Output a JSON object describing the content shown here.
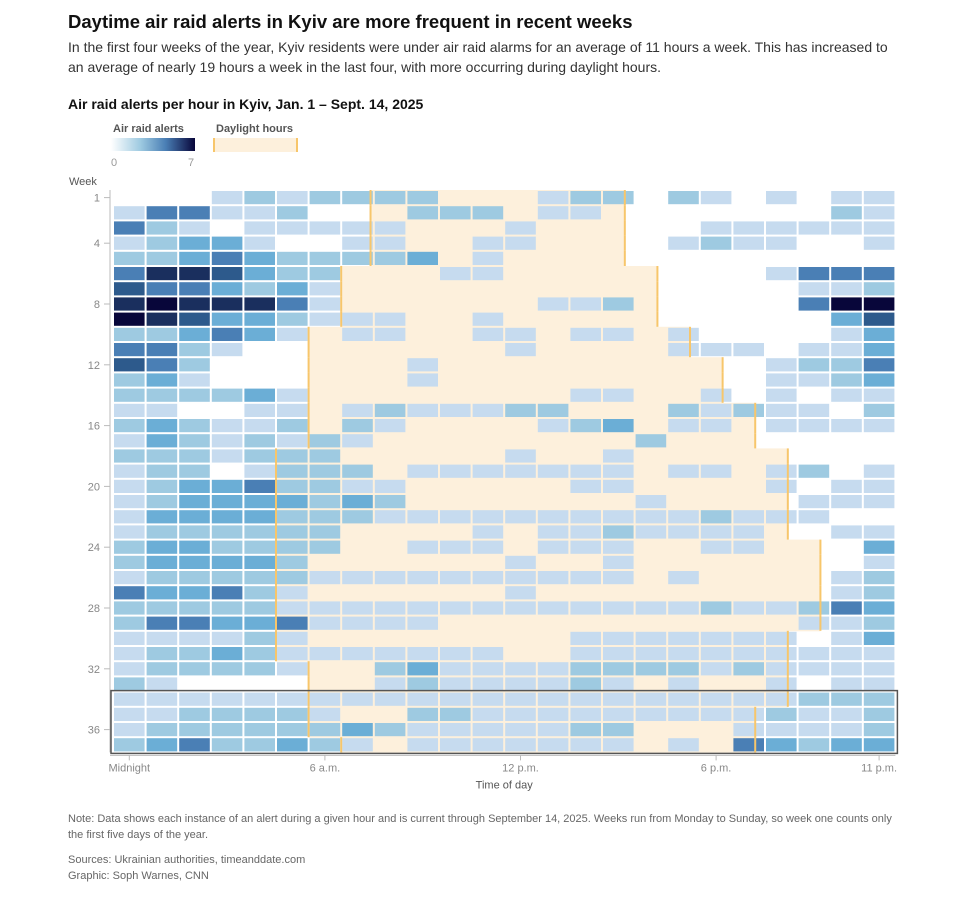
{
  "header": {
    "title": "Daytime air raid alerts in Kyiv are more frequent in recent weeks",
    "dek": "In the first four weeks of the year, Kyiv residents were under air raid alarms for an average of 11 hours a week. This has increased to an average of nearly 19 hours a week in the last four, with more occurring during daylight hours."
  },
  "legend": {
    "alerts_label": "Air raid alerts",
    "daylight_label": "Daylight hours",
    "min_label": "0",
    "max_label": "7"
  },
  "footer": {
    "note": "Note: Data shows each instance of an alert during a given hour and is current through September 14, 2025. Weeks run from Monday to Sunday, so week one counts only the first five days of the year.",
    "sources": "Sources: Ukrainian authorities, timeanddate.com",
    "credit": "Graphic: Soph Warnes, CNN"
  },
  "colors": {
    "scale": [
      "#ffffff",
      "#c6dbef",
      "#9ecae1",
      "#6baed6",
      "#4a7fb5",
      "#2d5a8c",
      "#1a2f5e",
      "#08063a"
    ],
    "daylight_fill": "#fdf0dc",
    "daylight_line": "#f7c66b",
    "highlight_border": "#555555"
  },
  "chart_data": {
    "type": "heatmap",
    "title": "Air raid alerts per hour in Kyiv, Jan. 1 – Sept. 14, 2025",
    "xlabel": "Time of day",
    "ylabel": "Week",
    "x_ticks": [
      {
        "hour": 0,
        "label": "Midnight"
      },
      {
        "hour": 6,
        "label": "6 a.m."
      },
      {
        "hour": 12,
        "label": "12 p.m."
      },
      {
        "hour": 18,
        "label": "6 p.m."
      },
      {
        "hour": 23,
        "label": "11 p.m."
      }
    ],
    "y_ticks": [
      1,
      4,
      8,
      12,
      16,
      20,
      24,
      28,
      32,
      36
    ],
    "hours": [
      0,
      23
    ],
    "weeks": [
      1,
      37
    ],
    "value_range": [
      0,
      7
    ],
    "highlight_weeks": [
      34,
      37
    ],
    "sunrise_by_week": [
      7.9,
      7.9,
      7.9,
      7.9,
      7.9,
      7.0,
      7.0,
      7.0,
      7.0,
      6.0,
      6.0,
      6.0,
      6.0,
      6.0,
      6.0,
      6.0,
      6.0,
      5.0,
      5.0,
      5.0,
      5.0,
      5.0,
      5.0,
      5.0,
      5.0,
      5.0,
      5.0,
      5.0,
      5.0,
      5.0,
      5.0,
      6.0,
      6.0,
      6.0,
      6.0,
      6.0,
      7.0
    ],
    "sunset_by_week": [
      15.7,
      15.7,
      15.7,
      15.7,
      15.7,
      16.7,
      16.7,
      16.7,
      16.7,
      17.7,
      17.7,
      18.7,
      18.7,
      18.7,
      19.7,
      19.7,
      19.7,
      20.7,
      20.7,
      20.7,
      20.7,
      20.7,
      20.7,
      21.7,
      21.7,
      21.7,
      21.7,
      21.7,
      21.7,
      20.7,
      20.7,
      20.7,
      20.7,
      20.7,
      19.7,
      19.7,
      19.7
    ],
    "values": [
      [
        0,
        0,
        0,
        1,
        2,
        1,
        2,
        2,
        2,
        2,
        0,
        0,
        0,
        1,
        2,
        2,
        0,
        2,
        1,
        0,
        1,
        0,
        1,
        1
      ],
      [
        1,
        4,
        4,
        1,
        1,
        2,
        0,
        0,
        0,
        2,
        2,
        2,
        0,
        1,
        1,
        0,
        0,
        0,
        0,
        0,
        0,
        0,
        2,
        1
      ],
      [
        4,
        2,
        1,
        0,
        1,
        1,
        1,
        1,
        1,
        0,
        0,
        0,
        1,
        0,
        0,
        0,
        0,
        0,
        1,
        1,
        1,
        1,
        1,
        1
      ],
      [
        1,
        2,
        3,
        3,
        1,
        0,
        0,
        1,
        1,
        0,
        0,
        1,
        1,
        0,
        0,
        0,
        0,
        1,
        2,
        1,
        1,
        0,
        0,
        1
      ],
      [
        2,
        2,
        3,
        4,
        3,
        2,
        2,
        2,
        2,
        3,
        0,
        1,
        0,
        0,
        0,
        0,
        0,
        0,
        0,
        0,
        0,
        0,
        0,
        0
      ],
      [
        4,
        6,
        6,
        5,
        3,
        2,
        2,
        0,
        0,
        0,
        1,
        1,
        0,
        0,
        0,
        0,
        0,
        0,
        0,
        0,
        1,
        4,
        4,
        4
      ],
      [
        5,
        4,
        4,
        3,
        2,
        3,
        1,
        0,
        0,
        0,
        0,
        0,
        0,
        0,
        0,
        0,
        0,
        0,
        0,
        0,
        0,
        1,
        1,
        2
      ],
      [
        6,
        7,
        6,
        6,
        6,
        4,
        1,
        0,
        0,
        0,
        0,
        0,
        0,
        1,
        1,
        2,
        0,
        0,
        0,
        0,
        0,
        4,
        7,
        7
      ],
      [
        7,
        6,
        5,
        3,
        3,
        2,
        1,
        1,
        1,
        0,
        0,
        1,
        0,
        0,
        0,
        0,
        0,
        0,
        0,
        0,
        0,
        0,
        3,
        5
      ],
      [
        2,
        2,
        3,
        4,
        3,
        1,
        0,
        1,
        1,
        0,
        0,
        1,
        1,
        0,
        1,
        1,
        0,
        1,
        0,
        0,
        0,
        0,
        1,
        3
      ],
      [
        4,
        4,
        2,
        1,
        0,
        0,
        0,
        0,
        0,
        0,
        0,
        0,
        1,
        0,
        0,
        0,
        0,
        1,
        1,
        1,
        0,
        1,
        1,
        3
      ],
      [
        5,
        4,
        2,
        0,
        0,
        0,
        0,
        0,
        0,
        1,
        0,
        0,
        0,
        0,
        0,
        0,
        0,
        0,
        0,
        0,
        1,
        2,
        2,
        4
      ],
      [
        2,
        3,
        1,
        0,
        0,
        0,
        0,
        0,
        0,
        1,
        0,
        0,
        0,
        0,
        0,
        0,
        0,
        0,
        0,
        0,
        1,
        1,
        2,
        3
      ],
      [
        2,
        2,
        2,
        2,
        3,
        1,
        0,
        0,
        0,
        0,
        0,
        0,
        0,
        0,
        1,
        1,
        0,
        0,
        1,
        0,
        1,
        0,
        1,
        1
      ],
      [
        1,
        1,
        0,
        0,
        1,
        1,
        0,
        1,
        2,
        1,
        1,
        1,
        2,
        2,
        0,
        0,
        0,
        2,
        1,
        2,
        1,
        1,
        0,
        2
      ],
      [
        2,
        3,
        2,
        1,
        1,
        2,
        0,
        2,
        1,
        0,
        0,
        0,
        0,
        1,
        2,
        3,
        0,
        1,
        1,
        0,
        1,
        1,
        1,
        1
      ],
      [
        1,
        3,
        2,
        1,
        2,
        1,
        2,
        1,
        0,
        0,
        0,
        0,
        0,
        0,
        0,
        0,
        2,
        0,
        0,
        0,
        0,
        0,
        0,
        0
      ],
      [
        2,
        2,
        2,
        1,
        2,
        2,
        2,
        0,
        0,
        0,
        0,
        0,
        1,
        0,
        0,
        1,
        0,
        0,
        0,
        0,
        0,
        0,
        0,
        0
      ],
      [
        1,
        2,
        2,
        0,
        1,
        2,
        2,
        2,
        0,
        1,
        1,
        1,
        1,
        1,
        1,
        1,
        0,
        1,
        1,
        0,
        1,
        2,
        0,
        1
      ],
      [
        1,
        2,
        3,
        3,
        4,
        2,
        2,
        1,
        1,
        0,
        0,
        0,
        0,
        0,
        1,
        1,
        0,
        0,
        0,
        0,
        1,
        0,
        1,
        1
      ],
      [
        1,
        2,
        3,
        3,
        3,
        3,
        2,
        3,
        2,
        0,
        0,
        0,
        0,
        0,
        0,
        0,
        1,
        0,
        0,
        0,
        0,
        1,
        1,
        1
      ],
      [
        1,
        3,
        3,
        3,
        3,
        2,
        2,
        2,
        1,
        1,
        1,
        1,
        1,
        1,
        1,
        1,
        1,
        1,
        2,
        1,
        1,
        1,
        0,
        0
      ],
      [
        1,
        2,
        2,
        2,
        2,
        2,
        2,
        0,
        0,
        0,
        0,
        1,
        0,
        1,
        1,
        2,
        1,
        1,
        1,
        1,
        0,
        0,
        1,
        1
      ],
      [
        2,
        3,
        3,
        2,
        2,
        2,
        2,
        0,
        0,
        1,
        1,
        1,
        0,
        1,
        1,
        1,
        0,
        0,
        1,
        1,
        0,
        0,
        0,
        3
      ],
      [
        2,
        3,
        3,
        3,
        3,
        2,
        0,
        0,
        0,
        0,
        0,
        0,
        1,
        0,
        0,
        1,
        0,
        0,
        0,
        0,
        0,
        0,
        0,
        1
      ],
      [
        1,
        2,
        2,
        2,
        2,
        2,
        1,
        1,
        1,
        1,
        1,
        1,
        1,
        1,
        1,
        1,
        0,
        1,
        0,
        0,
        0,
        0,
        1,
        2
      ],
      [
        4,
        3,
        3,
        4,
        2,
        1,
        0,
        0,
        0,
        0,
        0,
        0,
        1,
        0,
        0,
        0,
        0,
        0,
        0,
        0,
        0,
        0,
        1,
        2
      ],
      [
        2,
        2,
        2,
        2,
        2,
        1,
        1,
        1,
        1,
        1,
        1,
        1,
        1,
        1,
        1,
        1,
        1,
        1,
        2,
        1,
        1,
        2,
        4,
        3
      ],
      [
        2,
        4,
        4,
        3,
        3,
        4,
        1,
        1,
        1,
        1,
        0,
        0,
        0,
        0,
        0,
        0,
        0,
        0,
        0,
        0,
        0,
        1,
        1,
        2
      ],
      [
        1,
        1,
        1,
        1,
        2,
        1,
        0,
        0,
        0,
        0,
        0,
        0,
        0,
        0,
        1,
        1,
        1,
        1,
        1,
        1,
        1,
        0,
        1,
        3
      ],
      [
        1,
        2,
        2,
        3,
        2,
        1,
        1,
        1,
        1,
        1,
        1,
        1,
        0,
        0,
        1,
        1,
        1,
        1,
        1,
        1,
        1,
        1,
        1,
        1
      ],
      [
        1,
        2,
        2,
        2,
        2,
        1,
        0,
        0,
        2,
        3,
        1,
        1,
        1,
        1,
        2,
        2,
        2,
        2,
        1,
        2,
        1,
        1,
        1,
        1
      ],
      [
        2,
        1,
        0,
        0,
        0,
        0,
        0,
        0,
        1,
        2,
        1,
        1,
        1,
        1,
        2,
        1,
        0,
        1,
        0,
        0,
        1,
        0,
        1,
        1
      ],
      [
        1,
        1,
        1,
        1,
        1,
        1,
        1,
        1,
        1,
        1,
        1,
        1,
        1,
        1,
        1,
        1,
        1,
        1,
        1,
        1,
        1,
        2,
        2,
        2
      ],
      [
        1,
        1,
        2,
        2,
        2,
        2,
        1,
        0,
        0,
        2,
        2,
        1,
        1,
        1,
        1,
        1,
        1,
        1,
        1,
        1,
        2,
        1,
        1,
        2
      ],
      [
        1,
        2,
        2,
        2,
        2,
        2,
        2,
        3,
        2,
        1,
        1,
        1,
        1,
        1,
        2,
        2,
        0,
        0,
        0,
        1,
        1,
        1,
        1,
        2
      ],
      [
        2,
        3,
        4,
        2,
        2,
        3,
        2,
        1,
        0,
        1,
        1,
        1,
        1,
        1,
        1,
        1,
        0,
        1,
        0,
        4,
        3,
        2,
        3,
        3
      ]
    ]
  }
}
